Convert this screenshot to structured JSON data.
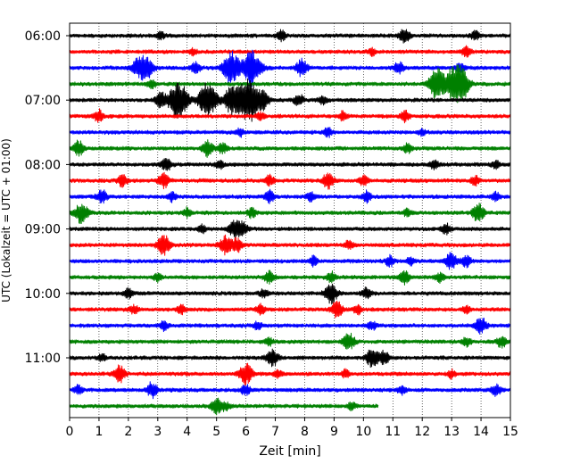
{
  "chart_data": {
    "type": "line",
    "title": "",
    "xlabel": "Zeit  [min]",
    "ylabel": "UTC (Lokalzeit = UTC + 01:00)",
    "xlim": [
      0,
      15
    ],
    "x_ticks": [
      "0",
      "1",
      "2",
      "3",
      "4",
      "5",
      "6",
      "7",
      "8",
      "9",
      "10",
      "11",
      "12",
      "13",
      "14",
      "15"
    ],
    "y_tick_labels": [
      "06:00",
      "07:00",
      "08:00",
      "09:00",
      "10:00",
      "11:00"
    ],
    "grid": "vertical dotted",
    "legend": "none",
    "trace_interval_minutes": 15,
    "trace_colors": [
      "#000000",
      "#ff0000",
      "#0000ff",
      "#008000"
    ],
    "traces": [
      {
        "start": "06:00",
        "color": "#000000",
        "end_min": 15,
        "events": [
          [
            3.1,
            0.25
          ],
          [
            7.2,
            0.35
          ],
          [
            11.4,
            0.5
          ],
          [
            13.8,
            0.3
          ]
        ]
      },
      {
        "start": "06:15",
        "color": "#ff0000",
        "end_min": 15,
        "events": [
          [
            4.2,
            0.2
          ],
          [
            10.3,
            0.25
          ],
          [
            13.5,
            0.4
          ]
        ]
      },
      {
        "start": "06:30",
        "color": "#0000ff",
        "end_min": 15,
        "events": [
          [
            2.3,
            0.55
          ],
          [
            2.6,
            0.8
          ],
          [
            4.3,
            0.35
          ],
          [
            5.5,
            1.1
          ],
          [
            6.2,
            1.2
          ],
          [
            7.9,
            0.6
          ],
          [
            11.2,
            0.4
          ],
          [
            13.3,
            0.35
          ]
        ]
      },
      {
        "start": "06:45",
        "color": "#008000",
        "end_min": 15,
        "events": [
          [
            2.8,
            0.3
          ],
          [
            12.5,
            1.0
          ],
          [
            13.1,
            1.2
          ],
          [
            13.4,
            0.7
          ]
        ]
      },
      {
        "start": "07:00",
        "color": "#000000",
        "end_min": 15,
        "events": [
          [
            3.1,
            0.5
          ],
          [
            3.7,
            1.3
          ],
          [
            4.7,
            1.2
          ],
          [
            5.5,
            0.9
          ],
          [
            6.1,
            1.5
          ],
          [
            6.6,
            0.5
          ],
          [
            7.8,
            0.4
          ],
          [
            8.6,
            0.3
          ]
        ]
      },
      {
        "start": "07:15",
        "color": "#ff0000",
        "end_min": 15,
        "events": [
          [
            1.0,
            0.4
          ],
          [
            6.5,
            0.25
          ],
          [
            9.3,
            0.3
          ],
          [
            11.4,
            0.35
          ]
        ]
      },
      {
        "start": "07:30",
        "color": "#0000ff",
        "end_min": 15,
        "events": [
          [
            5.8,
            0.25
          ],
          [
            8.8,
            0.3
          ],
          [
            12.0,
            0.2
          ]
        ]
      },
      {
        "start": "07:45",
        "color": "#008000",
        "end_min": 15,
        "events": [
          [
            0.3,
            0.5
          ],
          [
            4.7,
            0.5
          ],
          [
            5.2,
            0.35
          ],
          [
            11.5,
            0.3
          ]
        ]
      },
      {
        "start": "08:00",
        "color": "#000000",
        "end_min": 15,
        "events": [
          [
            3.3,
            0.45
          ],
          [
            5.1,
            0.3
          ],
          [
            12.4,
            0.3
          ],
          [
            14.5,
            0.25
          ]
        ]
      },
      {
        "start": "08:15",
        "color": "#ff0000",
        "end_min": 15,
        "events": [
          [
            1.8,
            0.4
          ],
          [
            3.2,
            0.5
          ],
          [
            6.8,
            0.35
          ],
          [
            8.8,
            0.55
          ],
          [
            10.0,
            0.35
          ],
          [
            13.8,
            0.3
          ]
        ]
      },
      {
        "start": "08:30",
        "color": "#0000ff",
        "end_min": 15,
        "events": [
          [
            1.1,
            0.45
          ],
          [
            3.5,
            0.3
          ],
          [
            6.8,
            0.4
          ],
          [
            8.2,
            0.3
          ],
          [
            10.1,
            0.35
          ],
          [
            14.5,
            0.3
          ]
        ]
      },
      {
        "start": "08:45",
        "color": "#008000",
        "end_min": 15,
        "events": [
          [
            0.4,
            0.7
          ],
          [
            4.0,
            0.3
          ],
          [
            6.2,
            0.3
          ],
          [
            11.5,
            0.25
          ],
          [
            13.9,
            0.6
          ]
        ]
      },
      {
        "start": "09:00",
        "color": "#000000",
        "end_min": 15,
        "events": [
          [
            4.5,
            0.25
          ],
          [
            5.6,
            0.55
          ],
          [
            5.9,
            0.45
          ],
          [
            12.8,
            0.35
          ]
        ]
      },
      {
        "start": "09:15",
        "color": "#ff0000",
        "end_min": 15,
        "events": [
          [
            3.2,
            0.7
          ],
          [
            5.3,
            0.6
          ],
          [
            5.7,
            0.45
          ],
          [
            9.5,
            0.3
          ]
        ]
      },
      {
        "start": "09:30",
        "color": "#0000ff",
        "end_min": 15,
        "events": [
          [
            8.3,
            0.3
          ],
          [
            10.9,
            0.35
          ],
          [
            11.6,
            0.25
          ],
          [
            13.0,
            0.6
          ],
          [
            13.5,
            0.4
          ]
        ]
      },
      {
        "start": "09:45",
        "color": "#008000",
        "end_min": 15,
        "events": [
          [
            3.0,
            0.25
          ],
          [
            6.8,
            0.45
          ],
          [
            8.9,
            0.35
          ],
          [
            11.4,
            0.4
          ],
          [
            12.6,
            0.3
          ]
        ]
      },
      {
        "start": "10:00",
        "color": "#000000",
        "end_min": 15,
        "events": [
          [
            2.0,
            0.3
          ],
          [
            6.6,
            0.3
          ],
          [
            8.9,
            0.65
          ],
          [
            10.1,
            0.35
          ]
        ]
      },
      {
        "start": "10:15",
        "color": "#ff0000",
        "end_min": 15,
        "events": [
          [
            2.2,
            0.3
          ],
          [
            3.8,
            0.3
          ],
          [
            6.5,
            0.35
          ],
          [
            9.1,
            0.55
          ],
          [
            9.8,
            0.3
          ],
          [
            13.5,
            0.25
          ]
        ]
      },
      {
        "start": "10:30",
        "color": "#0000ff",
        "end_min": 15,
        "events": [
          [
            3.2,
            0.3
          ],
          [
            6.4,
            0.25
          ],
          [
            10.3,
            0.3
          ],
          [
            14.0,
            0.55
          ]
        ]
      },
      {
        "start": "10:45",
        "color": "#008000",
        "end_min": 15,
        "events": [
          [
            6.8,
            0.25
          ],
          [
            9.5,
            0.6
          ],
          [
            13.5,
            0.3
          ],
          [
            14.7,
            0.4
          ]
        ]
      },
      {
        "start": "11:00",
        "color": "#000000",
        "end_min": 15,
        "events": [
          [
            1.1,
            0.25
          ],
          [
            6.9,
            0.6
          ],
          [
            10.3,
            0.65
          ],
          [
            10.7,
            0.45
          ]
        ]
      },
      {
        "start": "11:15",
        "color": "#ff0000",
        "end_min": 15,
        "events": [
          [
            1.7,
            0.55
          ],
          [
            6.0,
            0.7
          ],
          [
            7.1,
            0.3
          ],
          [
            9.4,
            0.25
          ],
          [
            13.0,
            0.25
          ]
        ]
      },
      {
        "start": "11:30",
        "color": "#0000ff",
        "end_min": 15,
        "events": [
          [
            0.3,
            0.3
          ],
          [
            2.8,
            0.5
          ],
          [
            6.0,
            0.35
          ],
          [
            11.3,
            0.3
          ],
          [
            14.5,
            0.4
          ]
        ]
      },
      {
        "start": "11:45",
        "color": "#008000",
        "end_min": 10.5,
        "events": [
          [
            5.0,
            0.5
          ],
          [
            5.3,
            0.3
          ],
          [
            9.6,
            0.25
          ]
        ]
      }
    ]
  }
}
